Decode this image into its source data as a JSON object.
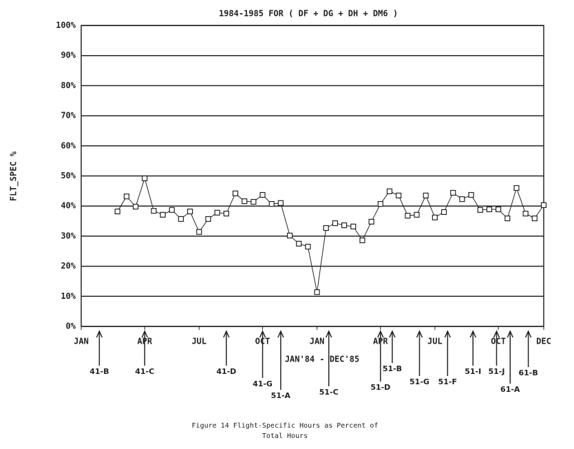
{
  "chart_data": {
    "type": "line",
    "title": "1984-1985 FOR ( DF + DG + DH + DM6 )",
    "y_label": "FLT_SPEC %",
    "x_label": "JAN'84 - DEC'85",
    "caption": [
      "Figure 14 Flight-Specific Hours as Percent of",
      "Total Hours"
    ],
    "x": [
      4,
      5,
      6,
      7,
      8,
      9,
      10,
      11,
      12,
      13,
      14,
      15,
      16,
      17,
      18,
      19,
      20,
      21,
      22,
      23,
      24,
      25,
      26,
      27,
      28,
      29,
      30,
      31,
      32,
      33,
      34,
      35,
      36,
      37,
      38,
      39,
      40,
      41,
      42,
      43,
      44,
      45,
      46,
      47,
      48,
      49,
      50,
      51
    ],
    "series": [
      {
        "name": "FLT_SPEC %",
        "color": "#222222",
        "values": [
          38.2,
          43.2,
          39.8,
          49.2,
          38.4,
          37.1,
          38.7,
          35.7,
          38.2,
          31.4,
          35.7,
          37.8,
          37.5,
          44.2,
          41.6,
          41.4,
          43.7,
          40.7,
          41.0,
          30.2,
          27.5,
          26.5,
          11.4,
          32.7,
          34.3,
          33.6,
          33.2,
          28.6,
          34.8,
          40.7,
          44.9,
          43.5,
          36.8,
          37.1,
          43.5,
          36.2,
          38.0,
          44.4,
          42.3,
          43.7,
          38.7,
          38.9,
          38.9,
          35.9,
          46.0,
          37.5,
          35.9,
          40.3
        ]
      }
    ],
    "xlim": [
      0,
      51
    ],
    "xticks": [
      {
        "value": 0,
        "label": "JAN"
      },
      {
        "value": 7,
        "label": "APR"
      },
      {
        "value": 13,
        "label": "JUL"
      },
      {
        "value": 20,
        "label": "OCT"
      },
      {
        "value": 26,
        "label": "JAN"
      },
      {
        "value": 33,
        "label": "APR"
      },
      {
        "value": 39,
        "label": "JUL"
      },
      {
        "value": 46,
        "label": "OCT"
      },
      {
        "value": 51,
        "label": "DEC"
      }
    ],
    "ylim": [
      0,
      100
    ],
    "yticks": [
      {
        "value": 0,
        "label": "0%"
      },
      {
        "value": 10,
        "label": "10%"
      },
      {
        "value": 20,
        "label": "20%"
      },
      {
        "value": 30,
        "label": "30%"
      },
      {
        "value": 40,
        "label": "40%"
      },
      {
        "value": 50,
        "label": "50%"
      },
      {
        "value": 60,
        "label": "60%"
      },
      {
        "value": 70,
        "label": "70%"
      },
      {
        "value": 80,
        "label": "80%"
      },
      {
        "value": 90,
        "label": "90%"
      },
      {
        "value": 100,
        "label": "100%"
      }
    ],
    "grid": true,
    "annotations": [
      {
        "text": "41-B",
        "x": 2
      },
      {
        "text": "41-C",
        "x": 7
      },
      {
        "text": "41-D",
        "x": 16
      },
      {
        "text": "41-G",
        "x": 20
      },
      {
        "text": "51-A",
        "x": 22
      },
      {
        "text": "51-C",
        "x": 27.3
      },
      {
        "text": "51-D",
        "x": 33
      },
      {
        "text": "51-B",
        "x": 34.3
      },
      {
        "text": "51-G",
        "x": 37.3
      },
      {
        "text": "51-F",
        "x": 40.4
      },
      {
        "text": "51-I",
        "x": 43.2
      },
      {
        "text": "51-J",
        "x": 45.8
      },
      {
        "text": "61-A",
        "x": 47.3
      },
      {
        "text": "61-B",
        "x": 49.3
      }
    ]
  }
}
